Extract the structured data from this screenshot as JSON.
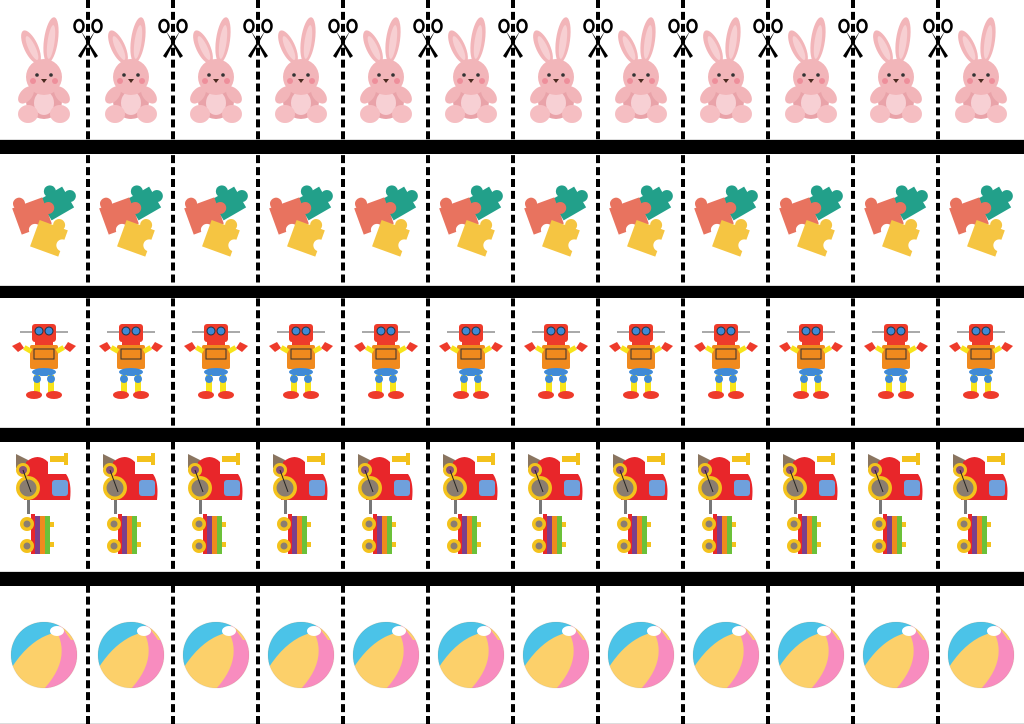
{
  "sheet": {
    "columns": 12,
    "rows": [
      {
        "name": "bunny",
        "icon": "bunny-icon"
      },
      {
        "name": "puzzle",
        "icon": "puzzle-pieces-icon"
      },
      {
        "name": "robot",
        "icon": "robot-icon"
      },
      {
        "name": "train",
        "icon": "toy-train-icon"
      },
      {
        "name": "ball",
        "icon": "beach-ball-icon"
      }
    ],
    "cut_marker_icon": "scissors-icon",
    "colors": {
      "divider": "#000000",
      "bunny": "#f2b5b9",
      "puzzle_red": "#e8735f",
      "puzzle_teal": "#22a08a",
      "puzzle_yellow": "#f5c542",
      "robot_red": "#ee3b2b",
      "robot_orange": "#f08a1e",
      "robot_blue": "#3f8ad6",
      "robot_yellow": "#f7e31b",
      "train_red": "#e8262a",
      "train_yellow": "#f3c21c",
      "ball_blue": "#4bc3e8",
      "ball_yellow": "#fcd06a",
      "ball_pink": "#f88cbf"
    }
  }
}
